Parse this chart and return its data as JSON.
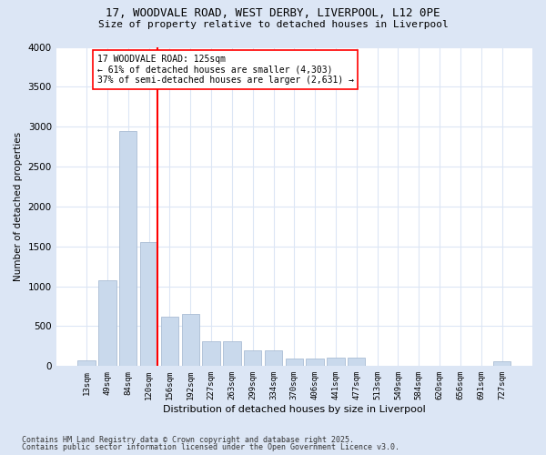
{
  "title_line1": "17, WOODVALE ROAD, WEST DERBY, LIVERPOOL, L12 0PE",
  "title_line2": "Size of property relative to detached houses in Liverpool",
  "xlabel": "Distribution of detached houses by size in Liverpool",
  "ylabel": "Number of detached properties",
  "categories": [
    "13sqm",
    "49sqm",
    "84sqm",
    "120sqm",
    "156sqm",
    "192sqm",
    "227sqm",
    "263sqm",
    "299sqm",
    "334sqm",
    "370sqm",
    "406sqm",
    "441sqm",
    "477sqm",
    "513sqm",
    "549sqm",
    "584sqm",
    "620sqm",
    "656sqm",
    "691sqm",
    "727sqm"
  ],
  "values": [
    75,
    1080,
    2950,
    1560,
    620,
    650,
    310,
    310,
    195,
    195,
    100,
    100,
    110,
    110,
    0,
    0,
    0,
    0,
    0,
    0,
    60
  ],
  "bar_color": "#c9d9ec",
  "bar_edge_color": "#aabdd4",
  "vline_x_index": 3,
  "vline_color": "red",
  "annotation_text": "17 WOODVALE ROAD: 125sqm\n← 61% of detached houses are smaller (4,303)\n37% of semi-detached houses are larger (2,631) →",
  "annotation_box_color": "white",
  "annotation_box_edge": "red",
  "ylim": [
    0,
    4000
  ],
  "yticks": [
    0,
    500,
    1000,
    1500,
    2000,
    2500,
    3000,
    3500,
    4000
  ],
  "footer_line1": "Contains HM Land Registry data © Crown copyright and database right 2025.",
  "footer_line2": "Contains public sector information licensed under the Open Government Licence v3.0.",
  "fig_bg_color": "#dce6f5",
  "plot_bg_color": "#ffffff",
  "grid_color": "#dce6f5"
}
